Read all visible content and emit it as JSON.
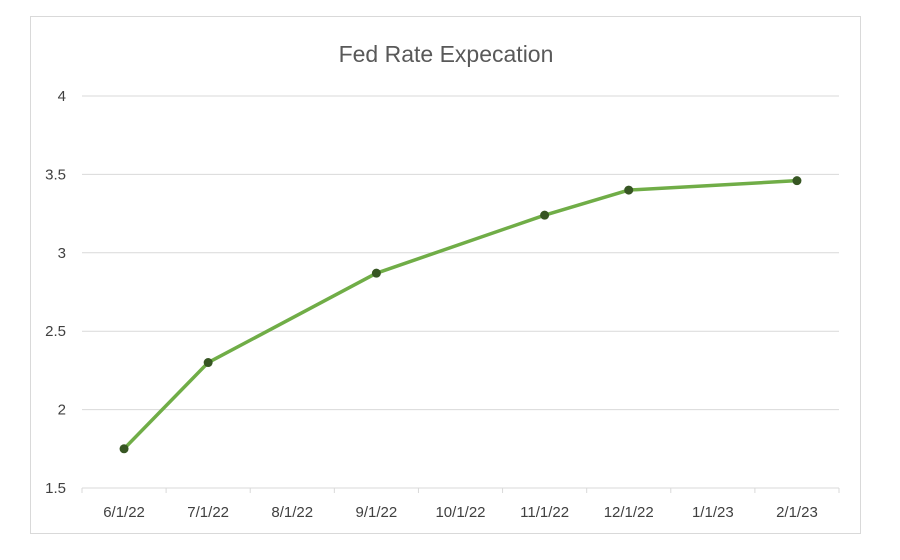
{
  "chart_data": {
    "type": "line",
    "title": "Fed Rate Expecation",
    "xlabel": "",
    "ylabel": "",
    "categories": [
      "6/1/22",
      "7/1/22",
      "8/1/22",
      "9/1/22",
      "10/1/22",
      "11/1/22",
      "12/1/22",
      "1/1/23",
      "2/1/23"
    ],
    "x": [
      "6/1/22",
      "7/1/22",
      "9/1/22",
      "11/1/22",
      "12/1/22",
      "2/1/23"
    ],
    "series": [
      {
        "values": [
          1.75,
          2.3,
          2.87,
          3.24,
          3.4,
          3.46
        ]
      }
    ],
    "y_ticks": [
      "1.5",
      "2",
      "2.5",
      "3",
      "3.5",
      "4"
    ],
    "ylim": [
      1.5,
      4
    ],
    "grid": true,
    "legend": "none",
    "colors": {
      "line": "#70ad47",
      "marker": "#375623",
      "grid": "#d9d9d9",
      "title": "#595959",
      "tick_label": "#404040"
    }
  }
}
